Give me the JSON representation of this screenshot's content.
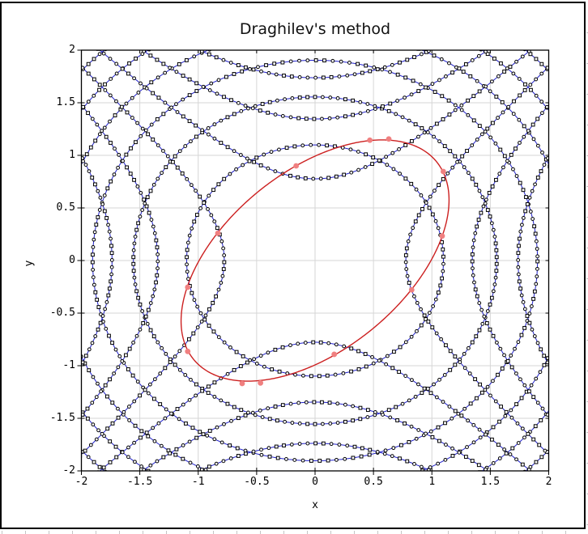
{
  "title": "Draghilev's method",
  "axes": {
    "xlabel": "x",
    "ylabel": "y",
    "xtick_labels": [
      "-2",
      "-1.5",
      "-1",
      "-0.5",
      "0",
      "0.5",
      "1",
      "1.5",
      "2"
    ],
    "ytick_labels": [
      "2",
      "1.5",
      "1",
      "0.5",
      "0",
      "-0.5",
      "-1",
      "-1.5",
      "-2"
    ]
  },
  "chart_data": {
    "type": "line",
    "title": "Draghilev's method",
    "xlabel": "x",
    "ylabel": "y",
    "xlim": [
      -2,
      2
    ],
    "ylim": [
      -2,
      2
    ],
    "tick_step": 0.5,
    "grid": true,
    "grid_color": "#d6d6d6",
    "frame_color": "#000000",
    "implicit_curve": {
      "description": "Zero set of a trigonometric implicit function drawn as chains of small hollow circle/square markers joined by thin blue segments; it decomposes into concentric circles x^2+y^2=A and hyperbolas x^2-y^2=±B whose asymptotes form the diagonal lattice in the corners and lens shapes along the axes",
      "formula": "sin(5.2*x^2) + sin(5.2*y^2) = 0",
      "circle_radii": [
        1.099,
        1.555,
        1.904,
        2.199,
        2.458,
        2.693
      ],
      "hyperbola_constants": [
        0.604,
        1.812,
        3.02
      ],
      "line_color": "#2222cc",
      "marker_stroke": "#000000",
      "marker_fill": "#ffffff",
      "marker_spacing": 0.065
    },
    "ellipse": {
      "equation": "x^2 - x*y + y^2 = 1",
      "center": [
        0,
        0
      ],
      "semi_axis_major": 1.405,
      "semi_axis_minor": 0.81,
      "rotation_deg": 45,
      "color": "#cc2020"
    },
    "solution_points": {
      "color": "#f08080",
      "points": [
        [
          0.469,
          1.144
        ],
        [
          0.631,
          1.156
        ],
        [
          1.098,
          0.846
        ],
        [
          1.088,
          0.233
        ],
        [
          0.827,
          -0.279
        ],
        [
          0.164,
          -0.892
        ],
        [
          -0.162,
          0.9
        ],
        [
          -0.832,
          0.259
        ],
        [
          -1.09,
          -0.254
        ],
        [
          -1.09,
          -0.864
        ],
        [
          -0.624,
          -1.169
        ],
        [
          -0.467,
          -1.164
        ]
      ]
    }
  }
}
